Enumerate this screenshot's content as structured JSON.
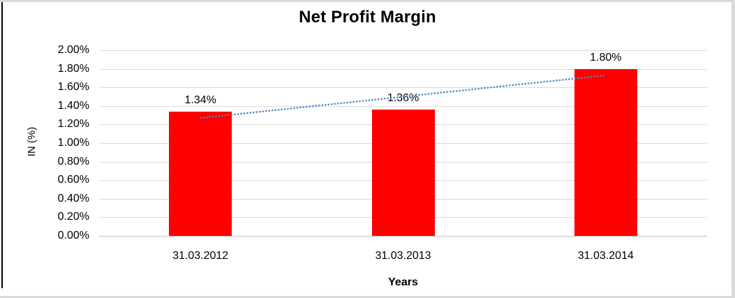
{
  "frame": {
    "border_color": "#d9d9d9",
    "left_line_color": "#000000"
  },
  "chart_data": {
    "type": "bar",
    "title": "Net Profit Margin",
    "categories": [
      "31.03.2012",
      "31.03.2013",
      "31.03.2014"
    ],
    "values": [
      1.34,
      1.36,
      1.8
    ],
    "value_labels": [
      "1.34%",
      "1.36%",
      "1.80%"
    ],
    "xlabel": "Years",
    "ylabel": "IN (%)",
    "ylim": [
      0,
      2.0
    ],
    "ytick_step": 0.2,
    "ytick_labels": [
      "0.00%",
      "0.20%",
      "0.40%",
      "0.60%",
      "0.80%",
      "1.00%",
      "1.20%",
      "1.40%",
      "1.60%",
      "1.80%",
      "2.00%"
    ],
    "grid": true,
    "legend": "none",
    "bar_color": "#ff0000",
    "gridline_color": "#d9d9d9",
    "axis_line_color": "#c0c0c0",
    "text_color": "#000000",
    "trendline": {
      "type": "linear",
      "style": "dotted",
      "color": "#4f86c6",
      "start_pct": 1.27,
      "end_pct": 1.73
    }
  }
}
